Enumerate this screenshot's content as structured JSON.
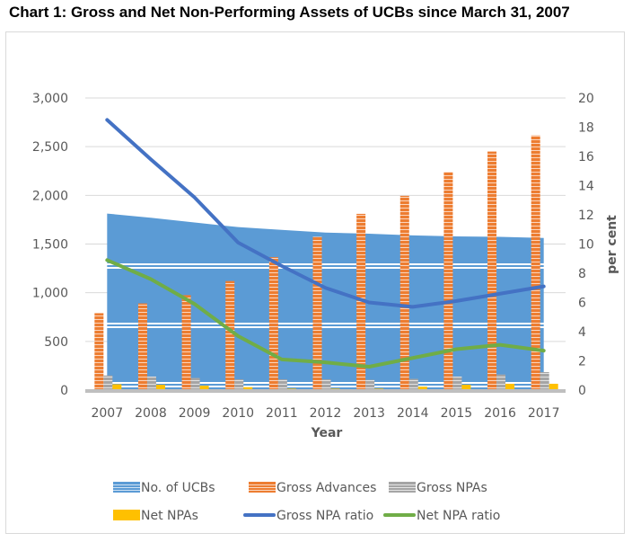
{
  "title": "Chart 1: Gross and Net Non-Performing Assets of UCBs since March 31, 2007",
  "chart_data": {
    "type": "bar",
    "title": "Chart 1: Gross and Net Non-Performing Assets of UCBs since March 31, 2007",
    "xlabel": "Year",
    "ylabel": "",
    "y2label": "per cent",
    "categories": [
      "2007",
      "2008",
      "2009",
      "2010",
      "2011",
      "2012",
      "2013",
      "2014",
      "2015",
      "2016",
      "2017"
    ],
    "ylim": [
      0,
      3000
    ],
    "y2lim": [
      0,
      20
    ],
    "yticks": [
      "0",
      "500",
      "1,000",
      "1,500",
      "2,000",
      "2,500",
      "3,000"
    ],
    "yticks_values": [
      0,
      500,
      1000,
      1500,
      2000,
      2500,
      3000
    ],
    "y2ticks": [
      "0",
      "2",
      "4",
      "6",
      "8",
      "10",
      "12",
      "14",
      "16",
      "18",
      "20"
    ],
    "y2ticks_values": [
      0,
      2,
      4,
      6,
      8,
      10,
      12,
      14,
      16,
      18,
      20
    ],
    "grid": true,
    "legend_position": "bottom",
    "series": [
      {
        "name": "No. of UCBs",
        "type": "area",
        "axis": "left",
        "color": "#5b9bd5",
        "values": [
          1813,
          1770,
          1721,
          1674,
          1645,
          1618,
          1606,
          1589,
          1579,
          1574,
          1562
        ]
      },
      {
        "name": "Gross Advances",
        "type": "bar",
        "axis": "left",
        "color": "#ed7d31",
        "values": [
          790,
          890,
          975,
          1120,
          1365,
          1575,
          1810,
          1995,
          2240,
          2450,
          2615
        ]
      },
      {
        "name": "Gross NPAs",
        "type": "bar",
        "axis": "left",
        "color": "#a5a5a5",
        "values": [
          150,
          140,
          125,
          110,
          110,
          110,
          105,
          115,
          140,
          160,
          185
        ]
      },
      {
        "name": "Net NPAs",
        "type": "bar",
        "axis": "left",
        "color": "#ffc000",
        "values": [
          60,
          55,
          45,
          30,
          15,
          15,
          15,
          35,
          55,
          65,
          65
        ]
      },
      {
        "name": "Gross NPA ratio",
        "type": "line",
        "axis": "right",
        "color": "#4472c4",
        "values": [
          18.5,
          15.8,
          13.2,
          10.1,
          8.5,
          7.0,
          6.0,
          5.7,
          6.1,
          6.6,
          7.1
        ]
      },
      {
        "name": "Net NPA ratio",
        "type": "line",
        "axis": "right",
        "color": "#70ad47",
        "values": [
          8.9,
          7.6,
          5.9,
          3.7,
          2.1,
          1.9,
          1.6,
          2.2,
          2.8,
          3.1,
          2.7
        ]
      }
    ]
  }
}
